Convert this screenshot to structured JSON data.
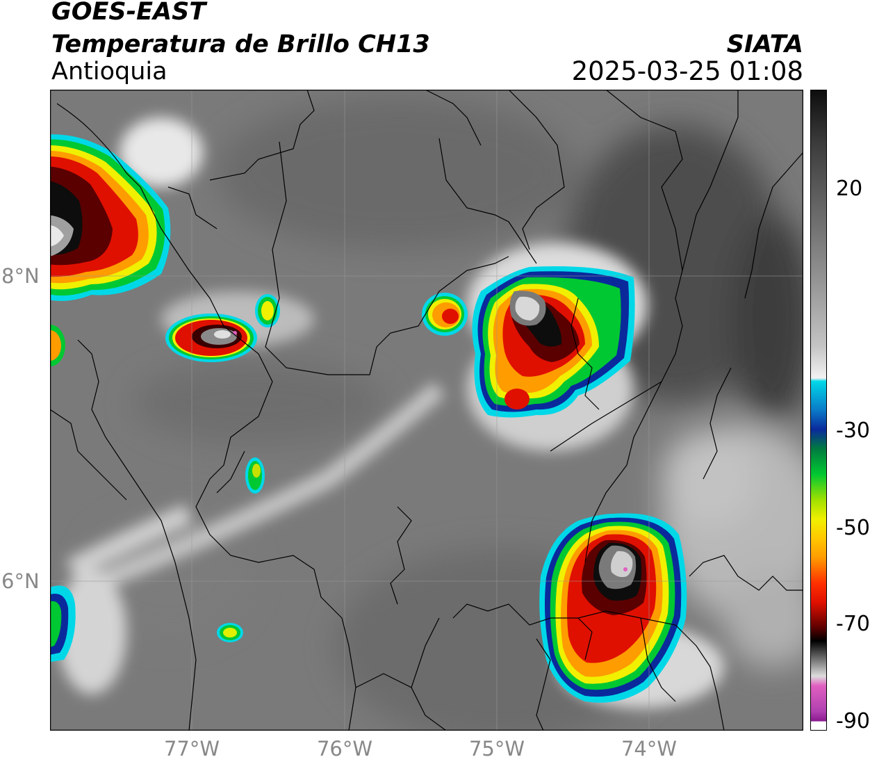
{
  "header": {
    "satellite": "GOES-EAST",
    "product": "Temperatura de Brillo CH13",
    "region": "Antioquia",
    "organization": "SIATA",
    "timestamp": "2025-03-25 01:08"
  },
  "map": {
    "lat_labels": [
      "8°N",
      "6°N"
    ],
    "lon_labels": [
      "77°W",
      "76°W",
      "75°W",
      "74°W"
    ]
  },
  "colorbar": {
    "tick_labels": [
      "20",
      "-30",
      "-50",
      "-70",
      "-90"
    ],
    "colors": {
      "warm_dark": "#1a1a1a",
      "warm_gray": "#7a7a7a",
      "white": "#f2f2f2",
      "cyan": "#00d8e8",
      "blue": "#0a2a9c",
      "green": "#00c832",
      "yellow": "#f0f000",
      "orange": "#ff9c00",
      "red": "#e01000",
      "dark_red": "#5a0000",
      "black": "#000000",
      "pink": "#e060c0",
      "purple": "#9a1aa0"
    }
  }
}
